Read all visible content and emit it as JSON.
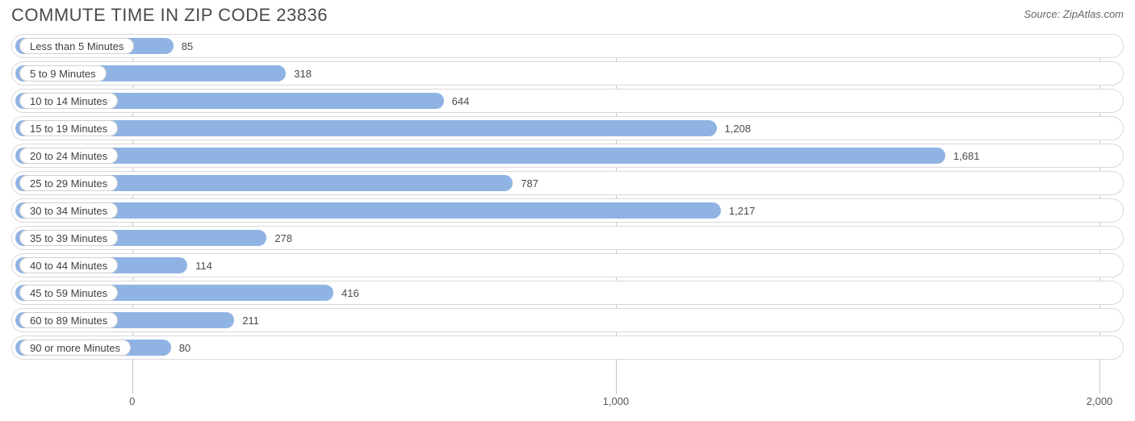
{
  "title": "COMMUTE TIME IN ZIP CODE 23836",
  "source": "Source: ZipAtlas.com",
  "chart": {
    "type": "bar",
    "orientation": "horizontal",
    "xmin": -250,
    "xmax": 2050,
    "bar_color": "#8fb4e3",
    "track_border_color": "#d9d9d9",
    "grid_color": "#c9c9c9",
    "background_color": "#ffffff",
    "label_fontsize": 13,
    "title_fontsize": 22,
    "title_color": "#4a4a4a",
    "text_color": "#4a4a4a",
    "categories": [
      "Less than 5 Minutes",
      "5 to 9 Minutes",
      "10 to 14 Minutes",
      "15 to 19 Minutes",
      "20 to 24 Minutes",
      "25 to 29 Minutes",
      "30 to 34 Minutes",
      "35 to 39 Minutes",
      "40 to 44 Minutes",
      "45 to 59 Minutes",
      "60 to 89 Minutes",
      "90 or more Minutes"
    ],
    "values": [
      85,
      318,
      644,
      1208,
      1681,
      787,
      1217,
      278,
      114,
      416,
      211,
      80
    ],
    "value_labels": [
      "85",
      "318",
      "644",
      "1,208",
      "1,681",
      "787",
      "1,217",
      "278",
      "114",
      "416",
      "211",
      "80"
    ],
    "xticks": [
      0,
      1000,
      2000
    ],
    "xtick_labels": [
      "0",
      "1,000",
      "2,000"
    ]
  }
}
